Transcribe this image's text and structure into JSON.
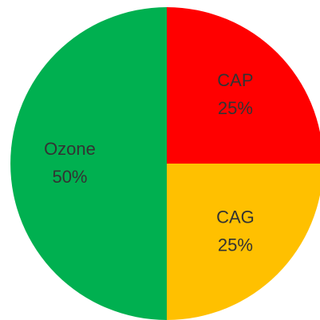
{
  "chart_data": {
    "type": "pie",
    "categories": [
      "CAP",
      "CAG",
      "Ozone"
    ],
    "values": [
      25,
      25,
      50
    ],
    "value_labels": [
      "25%",
      "25%",
      "50%"
    ],
    "colors": [
      "#ff0000",
      "#ffc000",
      "#00b050"
    ]
  }
}
